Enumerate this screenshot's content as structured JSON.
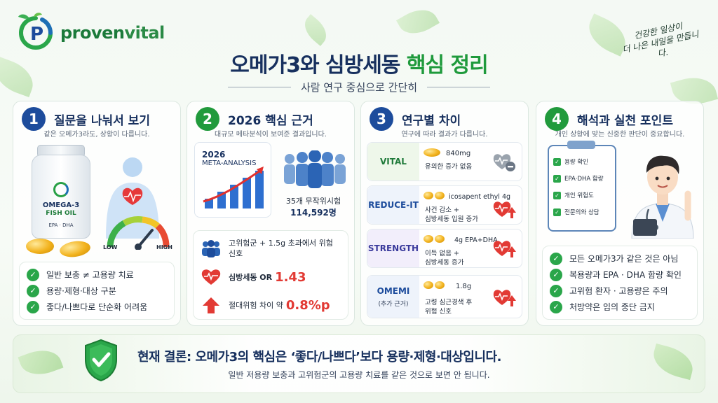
{
  "brand": {
    "name_prefix": "proven",
    "name_suffix": "vital"
  },
  "header": {
    "title_dark": "오메가3와 심방세동",
    "title_green": "핵심 정리",
    "subtitle": "사람 연구 중심으로 간단히",
    "handwriting_line1": "건강한 일상이",
    "handwriting_line2": "더 나은 내일을 만듭니다."
  },
  "cards": [
    {
      "number": "1",
      "title": "질문을 나눠서 보기",
      "subtitle": "같은 오메가3라도, 상황이 다릅니다.",
      "bottle_label": "OMEGA-3",
      "bottle_sub": "FISH OIL",
      "bottle_sub2": "EPA · DHA",
      "gauge_low": "LOW",
      "gauge_high": "HIGH",
      "checks": [
        "일반 보충 ≠ 고용량 치료",
        "용량·제형·대상 구분",
        "좋다/나쁘다로 단순화 어려움"
      ]
    },
    {
      "number": "2",
      "title": "2026 핵심 근거",
      "subtitle": "대규모 메타분석이 보여준 결과입니다.",
      "meta_year": "2026",
      "meta_label": "META-ANALYSIS",
      "trials_label": "35개 무작위시험",
      "trials_value": "114,592명",
      "stat1": "고위험군 + 1.5g 초과에서 위험 신호",
      "stat2_label": "심방세동 OR",
      "stat2_value": "1.43",
      "stat3_label": "절대위험 차이 약",
      "stat3_value": "0.8%p"
    },
    {
      "number": "3",
      "title": "연구별 차이",
      "subtitle": "연구에 따라 결과가 다릅니다.",
      "studies": [
        {
          "name": "VITAL",
          "note": "",
          "dose": "840mg",
          "result1": "유의한 증가 없음",
          "result2": ""
        },
        {
          "name": "REDUCE-IT",
          "note": "",
          "dose": "icosapent ethyl 4g",
          "result1": "사건 감소 +",
          "result2": "심방세동 입원 증가"
        },
        {
          "name": "STRENGTH",
          "note": "",
          "dose": "4g EPA+DHA",
          "result1": "이득 없음 +",
          "result2": "심방세동 증가"
        },
        {
          "name": "OMEMI",
          "note": "(추가 근거)",
          "dose": "1.8g",
          "result1": "고령 심근경색 후",
          "result2": "위험 신호"
        }
      ]
    },
    {
      "number": "4",
      "title": "해석과 실천 포인트",
      "subtitle": "개인 상황에 맞는 신중한 판단이 중요합니다.",
      "clipboard": [
        "용량 확인",
        "EPA·DHA 함량",
        "개인 위험도",
        "전문의와 상담"
      ],
      "checks": [
        "모든 오메가3가 같은 것은 아님",
        "복용량과 EPA · DHA 함량 확인",
        "고위험 환자 · 고용량은 주의",
        "처방약은 임의 중단 금지"
      ]
    }
  ],
  "footer": {
    "conclusion": "현재 결론: 오메가3의 핵심은 ‘좋다/나쁘다’보다 용량·제형·대상입니다.",
    "note": "일반 저용량 보충과 고위험군의 고용량 치료를 같은 것으로 보면 안 됩니다."
  },
  "colors": {
    "navy": "#17305e",
    "green": "#1f9a3c",
    "red": "#e23a34",
    "blue_badge": "#1d4c9c"
  }
}
